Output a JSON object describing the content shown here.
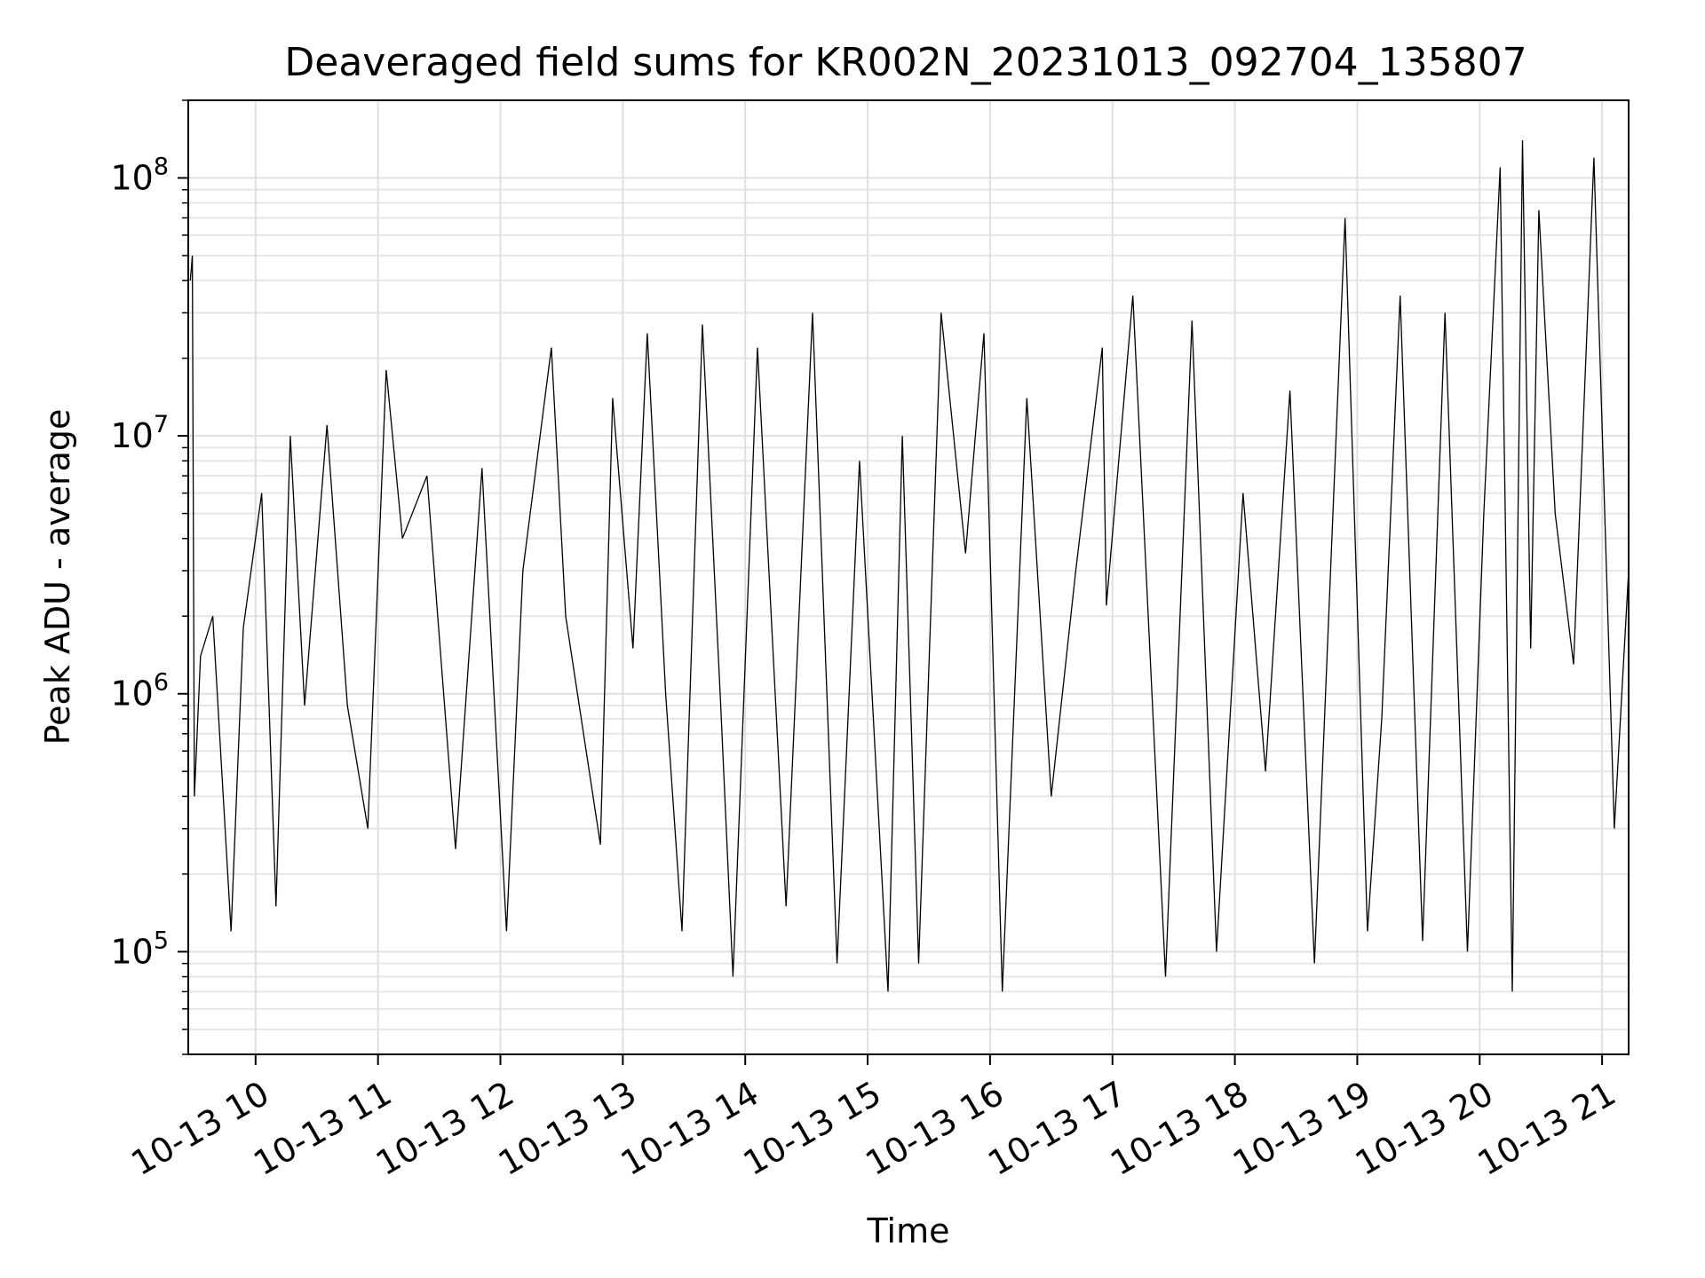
{
  "chart_data": {
    "type": "line",
    "title": "Deaveraged field sums for KR002N_20231013_092704_135807",
    "xlabel": "Time",
    "ylabel": "Peak ADU - average",
    "x_start": "2023-10-13 09:27",
    "x_end": "2023-10-13 21:13",
    "y_scale": "log",
    "ylim": [
      40000,
      200000000
    ],
    "grid": true,
    "line_color": "#000000",
    "x_ticks": [
      {
        "value": "2023-10-13 10:00",
        "label": "10-13 10"
      },
      {
        "value": "2023-10-13 11:00",
        "label": "10-13 11"
      },
      {
        "value": "2023-10-13 12:00",
        "label": "10-13 12"
      },
      {
        "value": "2023-10-13 13:00",
        "label": "10-13 13"
      },
      {
        "value": "2023-10-13 14:00",
        "label": "10-13 14"
      },
      {
        "value": "2023-10-13 15:00",
        "label": "10-13 15"
      },
      {
        "value": "2023-10-13 16:00",
        "label": "10-13 16"
      },
      {
        "value": "2023-10-13 17:00",
        "label": "10-13 17"
      },
      {
        "value": "2023-10-13 18:00",
        "label": "10-13 18"
      },
      {
        "value": "2023-10-13 19:00",
        "label": "10-13 19"
      },
      {
        "value": "2023-10-13 20:00",
        "label": "10-13 20"
      },
      {
        "value": "2023-10-13 21:00",
        "label": "10-13 21"
      }
    ],
    "y_ticks": [
      {
        "value": 100000,
        "base": "10",
        "exp": "5"
      },
      {
        "value": 1000000,
        "base": "10",
        "exp": "6"
      },
      {
        "value": 10000000,
        "base": "10",
        "exp": "7"
      },
      {
        "value": 100000000,
        "base": "10",
        "exp": "8"
      }
    ],
    "series": [
      {
        "x": [
          "2023-10-13 09:28",
          "2023-10-13 09:29",
          "2023-10-13 09:30",
          "2023-10-13 09:33",
          "2023-10-13 09:39",
          "2023-10-13 09:48",
          "2023-10-13 09:54",
          "2023-10-13 10:03",
          "2023-10-13 10:10",
          "2023-10-13 10:17",
          "2023-10-13 10:24",
          "2023-10-13 10:35",
          "2023-10-13 10:45",
          "2023-10-13 10:55",
          "2023-10-13 11:04",
          "2023-10-13 11:12",
          "2023-10-13 11:24",
          "2023-10-13 11:38",
          "2023-10-13 11:51",
          "2023-10-13 12:03",
          "2023-10-13 12:11",
          "2023-10-13 12:25",
          "2023-10-13 12:32",
          "2023-10-13 12:49",
          "2023-10-13 12:55",
          "2023-10-13 13:05",
          "2023-10-13 13:12",
          "2023-10-13 13:21",
          "2023-10-13 13:29",
          "2023-10-13 13:39",
          "2023-10-13 13:48",
          "2023-10-13 13:54",
          "2023-10-13 14:06",
          "2023-10-13 14:20",
          "2023-10-13 14:33",
          "2023-10-13 14:45",
          "2023-10-13 14:56",
          "2023-10-13 15:10",
          "2023-10-13 15:17",
          "2023-10-13 15:25",
          "2023-10-13 15:36",
          "2023-10-13 15:48",
          "2023-10-13 15:57",
          "2023-10-13 16:06",
          "2023-10-13 16:18",
          "2023-10-13 16:30",
          "2023-10-13 16:42",
          "2023-10-13 16:55",
          "2023-10-13 16:57",
          "2023-10-13 17:10",
          "2023-10-13 17:26",
          "2023-10-13 17:39",
          "2023-10-13 17:51",
          "2023-10-13 18:04",
          "2023-10-13 18:15",
          "2023-10-13 18:27",
          "2023-10-13 18:39",
          "2023-10-13 18:54",
          "2023-10-13 19:05",
          "2023-10-13 19:12",
          "2023-10-13 19:21",
          "2023-10-13 19:32",
          "2023-10-13 19:43",
          "2023-10-13 19:54",
          "2023-10-13 20:02",
          "2023-10-13 20:10",
          "2023-10-13 20:16",
          "2023-10-13 20:21",
          "2023-10-13 20:25",
          "2023-10-13 20:29",
          "2023-10-13 20:37",
          "2023-10-13 20:46",
          "2023-10-13 20:56",
          "2023-10-13 21:06",
          "2023-10-13 21:13"
        ],
        "y": [
          40000000,
          50000000,
          400000,
          1400000,
          2000000,
          120000,
          1800000,
          6000000,
          150000,
          10000000,
          900000,
          11000000,
          900000,
          300000,
          18000000,
          4000000,
          7000000,
          250000,
          7500000,
          120000,
          3000000,
          22000000,
          2000000,
          260000,
          14000000,
          1500000,
          25000000,
          1000000,
          120000,
          27000000,
          900000,
          80000,
          22000000,
          150000,
          30000000,
          90000,
          8000000,
          70000,
          10000000,
          90000,
          30000000,
          3500000,
          25000000,
          70000,
          14000000,
          400000,
          3000000,
          22000000,
          2200000,
          35000000,
          80000,
          28000000,
          100000,
          6000000,
          500000,
          15000000,
          90000,
          70000000,
          120000,
          800000,
          35000000,
          110000,
          30000000,
          100000,
          5000000,
          110000000,
          70000,
          140000000,
          1500000,
          75000000,
          5000000,
          1300000,
          120000000,
          300000,
          3000000
        ]
      }
    ]
  }
}
